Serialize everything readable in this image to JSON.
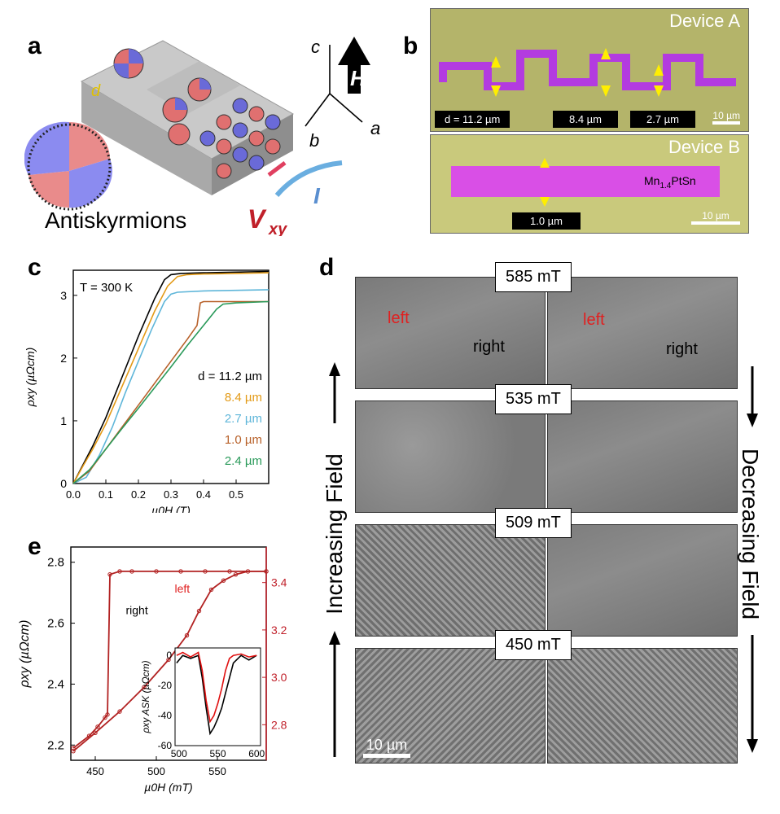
{
  "panels": {
    "a": {
      "letter": "a",
      "caption": "Antiskyrmions",
      "d_label": "d",
      "axes": {
        "c": "c",
        "b": "b",
        "a": "a"
      },
      "field_label": "H",
      "voltage_label": "V",
      "voltage_sub": "xy",
      "current_label": "I"
    },
    "b": {
      "letter": "b",
      "deviceA": {
        "title": "Device A",
        "widths": [
          "d = 11.2 µm",
          "8.4 µm",
          "2.7 µm"
        ],
        "scale": "10 µm"
      },
      "deviceB": {
        "title": "Device B",
        "material": "Mn",
        "material_sub": "1.4",
        "material_rest": "PtSn",
        "width": "1.0 µm",
        "scale": "10 µm"
      }
    },
    "c": {
      "letter": "c",
      "temperature": "T = 300 K",
      "xlabel_main": "µ",
      "xlabel": "µ0H (T)",
      "ylabel": "ρxy (µΩcm)",
      "legend": [
        {
          "label": "d = 11.2 µm",
          "color": "#000000"
        },
        {
          "label": "8.4 µm",
          "color": "#e39a16"
        },
        {
          "label": "2.7 µm",
          "color": "#5fb6d9"
        },
        {
          "label": "1.0 µm",
          "color": "#b8612a"
        },
        {
          "label": "2.4 µm",
          "color": "#2a9a5a"
        }
      ]
    },
    "d": {
      "letter": "d",
      "fields": [
        "585 mT",
        "535 mT",
        "509 mT",
        "450 mT"
      ],
      "left_label": "left",
      "right_label": "right",
      "increasing": "Increasing Field",
      "decreasing": "Decreasing Field",
      "scale": "10 µm"
    },
    "e": {
      "letter": "e",
      "left_label": "left",
      "right_label": "right",
      "xlabel": "µ0H (mT)",
      "ylabel": "ρxy (µΩcm)",
      "inset_ylabel": "ρxy ASK (µΩcm)"
    }
  },
  "chart_data": [
    {
      "type": "line",
      "title": "",
      "xlabel": "µ0H (T)",
      "ylabel": "ρxy (µΩcm)",
      "xlim": [
        0,
        0.6
      ],
      "ylim": [
        0,
        3.4
      ],
      "xticks": [
        0.0,
        0.1,
        0.2,
        0.3,
        0.4,
        0.5
      ],
      "yticks": [
        0,
        1,
        2,
        3
      ],
      "series": [
        {
          "name": "d = 11.2 µm",
          "color": "#000000",
          "x": [
            0,
            0.03,
            0.06,
            0.1,
            0.15,
            0.2,
            0.25,
            0.28,
            0.3,
            0.33,
            0.4,
            0.5,
            0.6
          ],
          "y": [
            0,
            0.3,
            0.6,
            1.05,
            1.7,
            2.35,
            2.95,
            3.25,
            3.33,
            3.35,
            3.36,
            3.37,
            3.38
          ]
        },
        {
          "name": "8.4 µm",
          "color": "#e39a16",
          "x": [
            0,
            0.03,
            0.06,
            0.1,
            0.15,
            0.2,
            0.25,
            0.29,
            0.32,
            0.35,
            0.4,
            0.5,
            0.6
          ],
          "y": [
            0,
            0.28,
            0.55,
            0.95,
            1.55,
            2.15,
            2.75,
            3.15,
            3.3,
            3.33,
            3.34,
            3.35,
            3.36
          ]
        },
        {
          "name": "2.7 µm",
          "color": "#5fb6d9",
          "x": [
            0,
            0.04,
            0.08,
            0.12,
            0.16,
            0.2,
            0.24,
            0.28,
            0.3,
            0.32,
            0.4,
            0.5,
            0.6
          ],
          "y": [
            0,
            0.1,
            0.45,
            0.9,
            1.45,
            1.95,
            2.45,
            2.9,
            3.02,
            3.05,
            3.07,
            3.08,
            3.09
          ]
        },
        {
          "name": "1.0 µm",
          "color": "#b8612a",
          "x": [
            0,
            0.05,
            0.1,
            0.15,
            0.2,
            0.25,
            0.3,
            0.35,
            0.38,
            0.39,
            0.4,
            0.5,
            0.6
          ],
          "y": [
            0,
            0.2,
            0.55,
            0.9,
            1.25,
            1.6,
            1.95,
            2.3,
            2.52,
            2.88,
            2.9,
            2.9,
            2.9
          ]
        },
        {
          "name": "2.4 µm",
          "color": "#2a9a5a",
          "x": [
            0,
            0.05,
            0.1,
            0.15,
            0.2,
            0.25,
            0.3,
            0.35,
            0.4,
            0.44,
            0.46,
            0.5,
            0.6
          ],
          "y": [
            0,
            0.22,
            0.55,
            0.88,
            1.2,
            1.53,
            1.86,
            2.2,
            2.52,
            2.78,
            2.86,
            2.88,
            2.9
          ]
        }
      ]
    },
    {
      "type": "line",
      "title": "",
      "xlabel": "µ0H (mT)",
      "ylabel": "ρxy (µΩcm)",
      "xlim": [
        430,
        590
      ],
      "ylim": [
        2.15,
        2.85
      ],
      "xticks": [
        450,
        500,
        550
      ],
      "yticks": [
        2.2,
        2.4,
        2.6,
        2.8
      ],
      "y2lim": [
        2.65,
        3.55
      ],
      "y2ticks": [
        2.8,
        3.0,
        3.2,
        3.4
      ],
      "series": [
        {
          "name": "increasing",
          "color": "#b22222",
          "x": [
            432,
            450,
            470,
            490,
            510,
            525,
            535,
            545,
            555,
            565,
            575,
            590
          ],
          "y": [
            2.18,
            2.24,
            2.31,
            2.39,
            2.48,
            2.56,
            2.64,
            2.71,
            2.74,
            2.76,
            2.77,
            2.77
          ]
        },
        {
          "name": "decreasing",
          "color": "#b22222",
          "x": [
            590,
            560,
            540,
            520,
            500,
            480,
            470,
            462,
            460,
            458,
            452,
            445,
            432
          ],
          "y": [
            2.77,
            2.77,
            2.77,
            2.77,
            2.77,
            2.77,
            2.77,
            2.76,
            2.3,
            2.29,
            2.26,
            2.23,
            2.19
          ]
        }
      ],
      "inset": {
        "xlim": [
          495,
          605
        ],
        "ylim": [
          -60,
          5
        ],
        "xticks": [
          500,
          550,
          600
        ],
        "yticks": [
          0,
          -20,
          -40,
          -60
        ],
        "series": [
          {
            "name": "black",
            "color": "#000000",
            "x": [
              497,
              505,
              515,
              525,
              530,
              535,
              540,
              545,
              550,
              555,
              560,
              565,
              570,
              580,
              590,
              600
            ],
            "y": [
              -5,
              0,
              -2,
              0,
              -15,
              -35,
              -52,
              -48,
              -42,
              -35,
              -25,
              -15,
              -5,
              0,
              -3,
              0
            ]
          },
          {
            "name": "red",
            "color": "#e01010",
            "x": [
              497,
              505,
              515,
              525,
              530,
              535,
              540,
              545,
              550,
              555,
              560,
              565,
              570,
              580,
              590,
              600
            ],
            "y": [
              0,
              2,
              -1,
              2,
              -10,
              -30,
              -44,
              -40,
              -32,
              -22,
              -10,
              -2,
              0,
              1,
              -1,
              0
            ]
          }
        ]
      }
    }
  ]
}
